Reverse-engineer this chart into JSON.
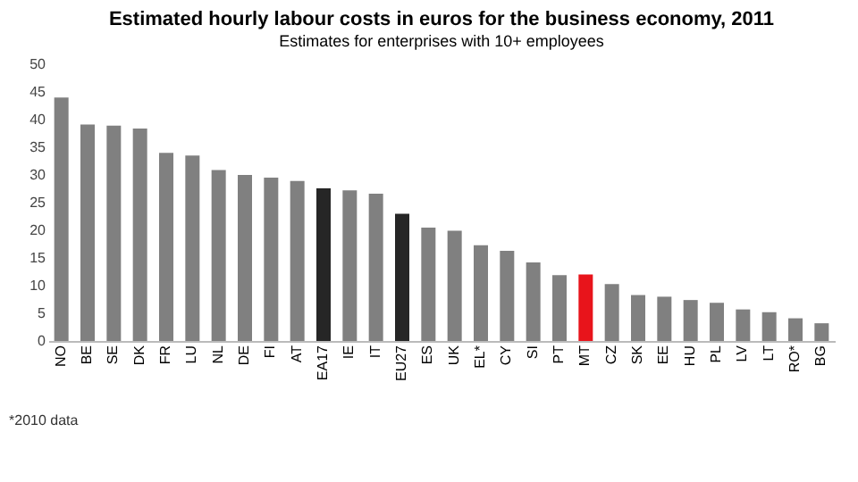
{
  "chart_data": {
    "type": "bar",
    "title": "Estimated hourly labour costs in euros for the business economy, 2011",
    "subtitle": "Estimates for enterprises with 10+ employees",
    "categories": [
      "NO",
      "BE",
      "SE",
      "DK",
      "FR",
      "LU",
      "NL",
      "DE",
      "FI",
      "AT",
      "EA17",
      "IE",
      "IT",
      "EU27",
      "ES",
      "UK",
      "EL*",
      "CY",
      "SI",
      "PT",
      "MT",
      "CZ",
      "SK",
      "EE",
      "HU",
      "PL",
      "LV",
      "LT",
      "RO*",
      "BG"
    ],
    "values": [
      44.0,
      39.1,
      38.9,
      38.4,
      34.0,
      33.5,
      30.9,
      30.0,
      29.5,
      28.9,
      27.6,
      27.2,
      26.6,
      23.0,
      20.5,
      19.9,
      17.3,
      16.3,
      14.2,
      11.9,
      12.0,
      10.3,
      8.3,
      8.0,
      7.4,
      6.9,
      5.7,
      5.2,
      4.1,
      3.2
    ],
    "colors": [
      "#808080",
      "#808080",
      "#808080",
      "#808080",
      "#808080",
      "#808080",
      "#808080",
      "#808080",
      "#808080",
      "#808080",
      "#262626",
      "#808080",
      "#808080",
      "#262626",
      "#808080",
      "#808080",
      "#808080",
      "#808080",
      "#808080",
      "#808080",
      "#e8141b",
      "#808080",
      "#808080",
      "#808080",
      "#808080",
      "#808080",
      "#808080",
      "#808080",
      "#808080",
      "#808080"
    ],
    "ylim": [
      0,
      50
    ],
    "yticks": [
      0,
      5,
      10,
      15,
      20,
      25,
      30,
      35,
      40,
      45,
      50
    ],
    "grid": false,
    "annotations": [
      "*2010 data"
    ]
  }
}
